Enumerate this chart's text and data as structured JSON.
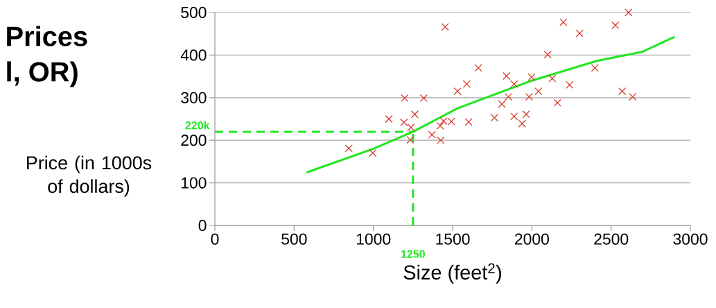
{
  "chart_data": {
    "type": "scatter",
    "title": "Prices",
    "subtitle": "l, OR)",
    "xlabel": "Size (feet$^{2}$)",
    "ylabel": "Price (in 1000s of dollars)",
    "xlim": [
      0,
      3000
    ],
    "ylim": [
      0,
      500
    ],
    "xticks": [
      0,
      500,
      1000,
      1500,
      2000,
      2500,
      3000
    ],
    "yticks": [
      0,
      100,
      200,
      300,
      400,
      500
    ],
    "grid": "y",
    "series": [
      {
        "color": "#d93a2b",
        "marker": "cross",
        "x": [
          845,
          996,
          1098,
          1197,
          1193,
          1261,
          1237,
          1233,
          1318,
          1453,
          1370,
          1425,
          1422,
          1443,
          1492,
          1531,
          1589,
          1601,
          1662,
          1764,
          1840,
          1811,
          1852,
          1888,
          1888,
          1939,
          1964,
          1983,
          1998,
          2041,
          2100,
          2129,
          2161,
          2199,
          2238,
          2301,
          2398,
          2527,
          2610,
          2570,
          2636
        ],
        "values": [
          181,
          170,
          250,
          299,
          242,
          261,
          230,
          201,
          299,
          466,
          213,
          200,
          234,
          245,
          244,
          315,
          332,
          243,
          370,
          253,
          351,
          285,
          302,
          332,
          256,
          239,
          261,
          302,
          348,
          315,
          401,
          345,
          288,
          477,
          330,
          451,
          370,
          470,
          500,
          315,
          302
        ]
      },
      {
        "type": "line",
        "color": "#22e622",
        "x": [
          583,
          1000,
          1250,
          1531,
          2000,
          2406,
          2700,
          2843,
          2896
        ],
        "values": [
          125,
          180,
          220,
          275,
          340,
          386,
          408,
          433,
          442
        ]
      }
    ],
    "ref_lines": [
      {
        "axis": "y",
        "value": 220,
        "label": "220k",
        "color": "#22e622",
        "line_style": "dashed"
      },
      {
        "axis": "x",
        "value": 1250,
        "label": "1250",
        "color": "#22e622",
        "line_style": "dashed"
      }
    ]
  }
}
